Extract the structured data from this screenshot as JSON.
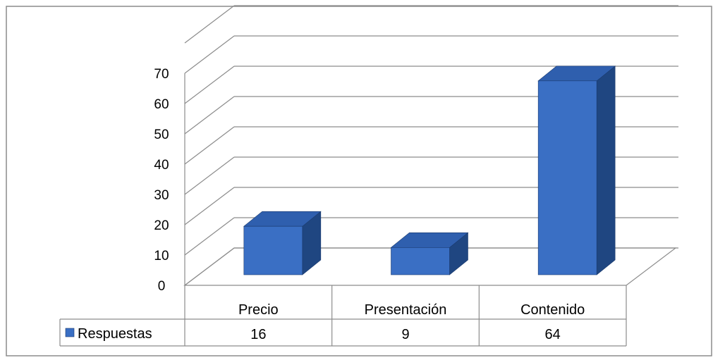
{
  "chart_data": {
    "type": "bar",
    "categories": [
      "Precio",
      "Presentación",
      "Contenido"
    ],
    "series": [
      {
        "name": "Respuestas",
        "values": [
          16,
          9,
          64
        ]
      }
    ],
    "y_ticks": [
      "0",
      "10",
      "20",
      "30",
      "40",
      "50",
      "60",
      "70"
    ],
    "ylim": [
      0,
      80
    ],
    "grid": true,
    "three_d": true,
    "legend": "data-table",
    "data_table": {
      "row_label": "Respuestas",
      "values": [
        "16",
        "9",
        "64"
      ]
    },
    "colors": {
      "bar_front": "#3a6fc4",
      "bar_side": "#1f4681",
      "bar_top": "#2f5fae",
      "grid": "#8c8c8c",
      "frame": "#8c8c8c"
    }
  }
}
